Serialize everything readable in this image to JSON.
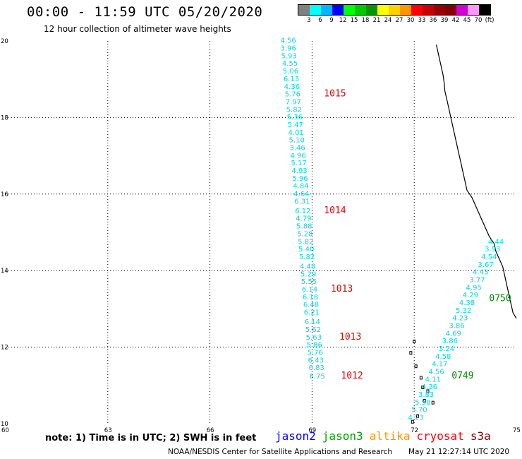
{
  "header": {
    "title": "00:00 - 11:59 UTC 05/20/2020",
    "subtitle": "12 hour collection of altimeter wave heights"
  },
  "legend": {
    "colors": [
      "#808080",
      "#00ffff",
      "#00b4ff",
      "#0000ff",
      "#00ff00",
      "#00c800",
      "#009600",
      "#ffff00",
      "#ffd000",
      "#ff9600",
      "#ff0000",
      "#c80000",
      "#960000",
      "#800000",
      "#d000d0",
      "#ff96ff",
      "#000000"
    ],
    "labels": [
      "3",
      "6",
      "9",
      "12",
      "15",
      "18",
      "21",
      "24",
      "27",
      "30",
      "33",
      "36",
      "39",
      "42",
      "45",
      "70",
      "(ft)"
    ]
  },
  "map": {
    "x_ticks": [
      "60",
      "63",
      "66",
      "69",
      "72",
      "75"
    ],
    "y_ticks": [
      "10",
      "12",
      "14",
      "16",
      "18",
      "20"
    ],
    "x_range": [
      60,
      75
    ],
    "y_range": [
      10,
      20
    ],
    "grid": "dotted"
  },
  "tracks": [
    {
      "name": "track-1",
      "color": "#00d7e6",
      "points": [
        {
          "lon": 68.3,
          "lat": 19.95,
          "v": "4.56"
        },
        {
          "lon": 68.3,
          "lat": 19.75,
          "v": "3.96"
        },
        {
          "lon": 68.32,
          "lat": 19.55,
          "v": "5.93"
        },
        {
          "lon": 68.35,
          "lat": 19.35,
          "v": "4.55"
        },
        {
          "lon": 68.37,
          "lat": 19.15,
          "v": "5.06"
        },
        {
          "lon": 68.39,
          "lat": 18.95,
          "v": "6.13"
        },
        {
          "lon": 68.41,
          "lat": 18.75,
          "v": "4.36"
        },
        {
          "lon": 68.43,
          "lat": 18.55,
          "v": "5.76"
        },
        {
          "lon": 68.45,
          "lat": 18.35,
          "v": "7.97"
        },
        {
          "lon": 68.47,
          "lat": 18.15,
          "v": "5.82"
        },
        {
          "lon": 68.49,
          "lat": 17.95,
          "v": "5.36"
        },
        {
          "lon": 68.51,
          "lat": 17.75,
          "v": "5.47"
        },
        {
          "lon": 68.53,
          "lat": 17.55,
          "v": "4.01"
        },
        {
          "lon": 68.55,
          "lat": 17.35,
          "v": "5.10"
        },
        {
          "lon": 68.57,
          "lat": 17.15,
          "v": "3.46"
        },
        {
          "lon": 68.59,
          "lat": 16.95,
          "v": "4.96"
        },
        {
          "lon": 68.61,
          "lat": 16.75,
          "v": "5.17"
        },
        {
          "lon": 68.63,
          "lat": 16.55,
          "v": "4.93"
        },
        {
          "lon": 68.65,
          "lat": 16.35,
          "v": "5.96"
        },
        {
          "lon": 68.67,
          "lat": 16.15,
          "v": "4.84"
        },
        {
          "lon": 68.69,
          "lat": 15.95,
          "v": "4.64"
        },
        {
          "lon": 68.71,
          "lat": 15.75,
          "v": "6.31"
        },
        {
          "lon": 68.73,
          "lat": 15.5,
          "v": "6.12"
        },
        {
          "lon": 68.75,
          "lat": 15.3,
          "v": "4.79"
        },
        {
          "lon": 68.77,
          "lat": 15.1,
          "v": "5.88"
        },
        {
          "lon": 68.79,
          "lat": 14.9,
          "v": "5.28"
        },
        {
          "lon": 68.81,
          "lat": 14.7,
          "v": "5.82"
        },
        {
          "lon": 68.83,
          "lat": 14.5,
          "v": "5.40"
        },
        {
          "lon": 68.85,
          "lat": 14.3,
          "v": "5.82"
        },
        {
          "lon": 68.87,
          "lat": 14.05,
          "v": "4.48"
        },
        {
          "lon": 68.89,
          "lat": 13.85,
          "v": "5.29"
        },
        {
          "lon": 68.91,
          "lat": 13.65,
          "v": "5.55"
        },
        {
          "lon": 68.93,
          "lat": 13.45,
          "v": "6.14"
        },
        {
          "lon": 68.95,
          "lat": 13.25,
          "v": "6.18"
        },
        {
          "lon": 68.97,
          "lat": 13.05,
          "v": "6.48"
        },
        {
          "lon": 68.99,
          "lat": 12.85,
          "v": "6.21"
        },
        {
          "lon": 69.01,
          "lat": 12.6,
          "v": "6.14"
        },
        {
          "lon": 69.03,
          "lat": 12.4,
          "v": "5.62"
        },
        {
          "lon": 69.05,
          "lat": 12.2,
          "v": "5.63"
        },
        {
          "lon": 69.07,
          "lat": 12.0,
          "v": "5.86"
        },
        {
          "lon": 69.09,
          "lat": 11.8,
          "v": "5.76"
        },
        {
          "lon": 69.11,
          "lat": 11.6,
          "v": "6.43"
        },
        {
          "lon": 69.13,
          "lat": 11.4,
          "v": "6.83"
        },
        {
          "lon": 69.15,
          "lat": 11.18,
          "v": "6.75"
        }
      ]
    },
    {
      "name": "track-2",
      "color": "#00d7e6",
      "points": [
        {
          "lon": 74.4,
          "lat": 14.7,
          "v": "4.44"
        },
        {
          "lon": 74.3,
          "lat": 14.5,
          "v": "3.93"
        },
        {
          "lon": 74.2,
          "lat": 14.3,
          "v": "4.54"
        },
        {
          "lon": 74.1,
          "lat": 14.1,
          "v": "3.67"
        },
        {
          "lon": 73.95,
          "lat": 13.9,
          "v": "4.43"
        },
        {
          "lon": 73.85,
          "lat": 13.7,
          "v": "3.77"
        },
        {
          "lon": 73.75,
          "lat": 13.5,
          "v": "4.95"
        },
        {
          "lon": 73.65,
          "lat": 13.3,
          "v": "4.29"
        },
        {
          "lon": 73.55,
          "lat": 13.1,
          "v": "4.38"
        },
        {
          "lon": 73.45,
          "lat": 12.9,
          "v": "5.32"
        },
        {
          "lon": 73.35,
          "lat": 12.7,
          "v": "4.23"
        },
        {
          "lon": 73.25,
          "lat": 12.5,
          "v": "3.86"
        },
        {
          "lon": 73.15,
          "lat": 12.3,
          "v": "4.69"
        },
        {
          "lon": 73.05,
          "lat": 12.1,
          "v": "3.86"
        },
        {
          "lon": 72.95,
          "lat": 11.9,
          "v": "3.24"
        },
        {
          "lon": 72.85,
          "lat": 11.7,
          "v": "4.58"
        },
        {
          "lon": 72.75,
          "lat": 11.5,
          "v": "4.17"
        },
        {
          "lon": 72.65,
          "lat": 11.3,
          "v": "4.56"
        },
        {
          "lon": 72.55,
          "lat": 11.1,
          "v": "4.11"
        },
        {
          "lon": 72.45,
          "lat": 10.9,
          "v": "4.36"
        },
        {
          "lon": 72.35,
          "lat": 10.7,
          "v": "3.83"
        },
        {
          "lon": 72.25,
          "lat": 10.5,
          "v": "5.58"
        },
        {
          "lon": 72.15,
          "lat": 10.3,
          "v": "5.70"
        },
        {
          "lon": 72.05,
          "lat": 10.1,
          "v": "4.23"
        }
      ]
    }
  ],
  "time_labels": [
    {
      "lon": 69.35,
      "lat": 18.55,
      "text": "1015",
      "color": "#e60000"
    },
    {
      "lon": 69.35,
      "lat": 15.5,
      "text": "1014",
      "color": "#e60000"
    },
    {
      "lon": 69.55,
      "lat": 13.45,
      "text": "1013",
      "color": "#e60000"
    },
    {
      "lon": 69.8,
      "lat": 12.2,
      "text": "1013",
      "color": "#e60000"
    },
    {
      "lon": 69.85,
      "lat": 11.18,
      "text": "1012",
      "color": "#e60000"
    },
    {
      "lon": 74.2,
      "lat": 13.2,
      "text": "0750",
      "color": "#008c00"
    },
    {
      "lon": 73.1,
      "lat": 11.18,
      "text": "0749",
      "color": "#008c00"
    }
  ],
  "coastline": [
    [
      72.65,
      19.9
    ],
    [
      72.7,
      19.7
    ],
    [
      72.75,
      19.5
    ],
    [
      72.8,
      19.3
    ],
    [
      72.85,
      19.1
    ],
    [
      72.88,
      18.9
    ],
    [
      72.9,
      18.7
    ],
    [
      72.95,
      18.5
    ],
    [
      73.0,
      18.3
    ],
    [
      73.05,
      18.1
    ],
    [
      73.1,
      17.9
    ],
    [
      73.15,
      17.7
    ],
    [
      73.2,
      17.5
    ],
    [
      73.25,
      17.3
    ],
    [
      73.3,
      17.1
    ],
    [
      73.35,
      16.9
    ],
    [
      73.4,
      16.7
    ],
    [
      73.45,
      16.5
    ],
    [
      73.5,
      16.3
    ],
    [
      73.55,
      16.1
    ],
    [
      73.7,
      15.9
    ],
    [
      73.8,
      15.7
    ],
    [
      73.9,
      15.5
    ],
    [
      74.0,
      15.3
    ],
    [
      74.1,
      15.1
    ],
    [
      74.2,
      14.9
    ],
    [
      74.35,
      14.7
    ],
    [
      74.4,
      14.5
    ],
    [
      74.5,
      14.3
    ],
    [
      74.6,
      14.1
    ],
    [
      74.65,
      13.9
    ],
    [
      74.7,
      13.7
    ],
    [
      74.75,
      13.5
    ],
    [
      74.8,
      13.3
    ],
    [
      74.85,
      13.1
    ],
    [
      74.9,
      12.9
    ],
    [
      75.0,
      12.75
    ]
  ],
  "islands": [
    [
      72.0,
      12.15
    ],
    [
      71.9,
      11.85
    ],
    [
      72.05,
      11.5
    ],
    [
      72.2,
      11.2
    ],
    [
      72.25,
      10.95
    ],
    [
      72.4,
      10.85
    ],
    [
      72.3,
      10.6
    ],
    [
      72.55,
      10.55
    ],
    [
      72.1,
      10.2
    ],
    [
      71.95,
      10.05
    ]
  ],
  "footer": {
    "note": "note: 1) Time is in UTC; 2) SWH is in feet",
    "satellites": [
      {
        "name": "jason2",
        "color": "#0000ff"
      },
      {
        "name": "jason3",
        "color": "#00a000"
      },
      {
        "name": "altika",
        "color": "#ff9600"
      },
      {
        "name": "cryosat",
        "color": "#ff0000"
      },
      {
        "name": "s3a",
        "color": "#800000"
      }
    ],
    "agency": "NOAA/NESDIS Center for Satellite Applications and Research",
    "generated": "May 21 12:27:14 UTC 2020"
  }
}
